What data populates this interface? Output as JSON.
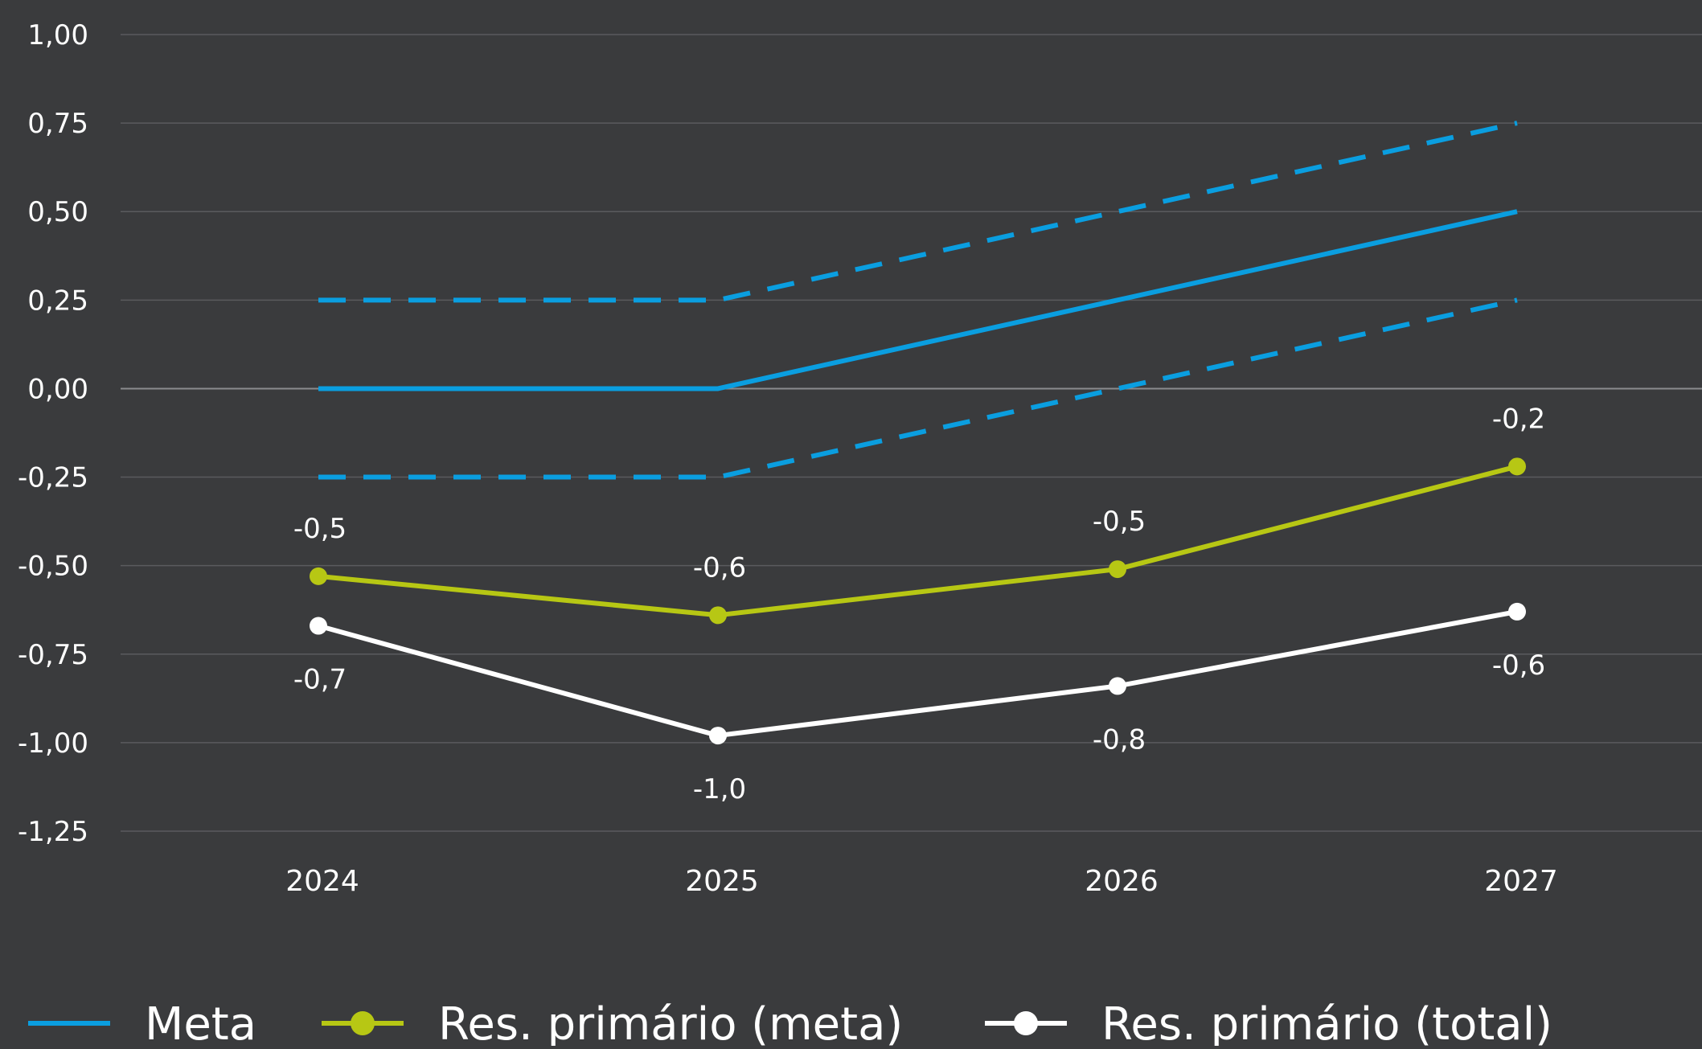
{
  "chart_data": {
    "type": "line",
    "title": "",
    "xlabel": "",
    "ylabel": "",
    "categories": [
      "2024",
      "2025",
      "2026",
      "2027"
    ],
    "ylim": [
      -1.25,
      1.0
    ],
    "yticks": [
      1.0,
      0.75,
      0.5,
      0.25,
      0.0,
      -0.25,
      -0.5,
      -0.75,
      -1.0,
      -1.25
    ],
    "ytick_labels": [
      "1,00",
      "0,75",
      "0,50",
      "0,25",
      "0,00",
      "-0,25",
      "-0,50",
      "-0,75",
      "-1,00",
      "-1,25"
    ],
    "grid": true,
    "legend_position": "bottom",
    "colors": {
      "background": "#3a3b3d",
      "meta": "#0a9ee0",
      "res_meta": "#b7c714",
      "res_total": "#ffffff",
      "grid": "#5a5b5e",
      "zero_line": "#8a8b8e",
      "text": "#ffffff"
    },
    "series": [
      {
        "key": "meta",
        "name": "Meta",
        "values": [
          0.0,
          0.0,
          0.25,
          0.5
        ],
        "style": "solid",
        "markers": false,
        "labels": []
      },
      {
        "key": "meta_upper",
        "name": "",
        "values": [
          0.25,
          0.25,
          0.5,
          0.75
        ],
        "style": "dashed",
        "markers": false,
        "labels": []
      },
      {
        "key": "meta_lower",
        "name": "",
        "values": [
          -0.25,
          -0.25,
          0.0,
          0.25
        ],
        "style": "dashed",
        "markers": false,
        "labels": []
      },
      {
        "key": "res_meta",
        "name": "Res. primário (meta)",
        "values": [
          -0.53,
          -0.64,
          -0.51,
          -0.22
        ],
        "style": "solid",
        "markers": true,
        "labels": [
          "-0,5",
          "-0,6",
          "-0,5",
          "-0,2"
        ],
        "label_position": "above"
      },
      {
        "key": "res_total",
        "name": "Res. primário (total)",
        "values": [
          -0.67,
          -0.98,
          -0.84,
          -0.63
        ],
        "style": "solid",
        "markers": true,
        "labels": [
          "-0,7",
          "-1,0",
          "-0,8",
          "-0,6"
        ],
        "label_position": "below"
      }
    ],
    "legend": [
      {
        "key": "meta",
        "label": "Meta",
        "marker": false
      },
      {
        "key": "res_meta",
        "label": "Res. primário (meta)",
        "marker": true
      },
      {
        "key": "res_total",
        "label": "Res. primário (total)",
        "marker": true
      }
    ]
  }
}
